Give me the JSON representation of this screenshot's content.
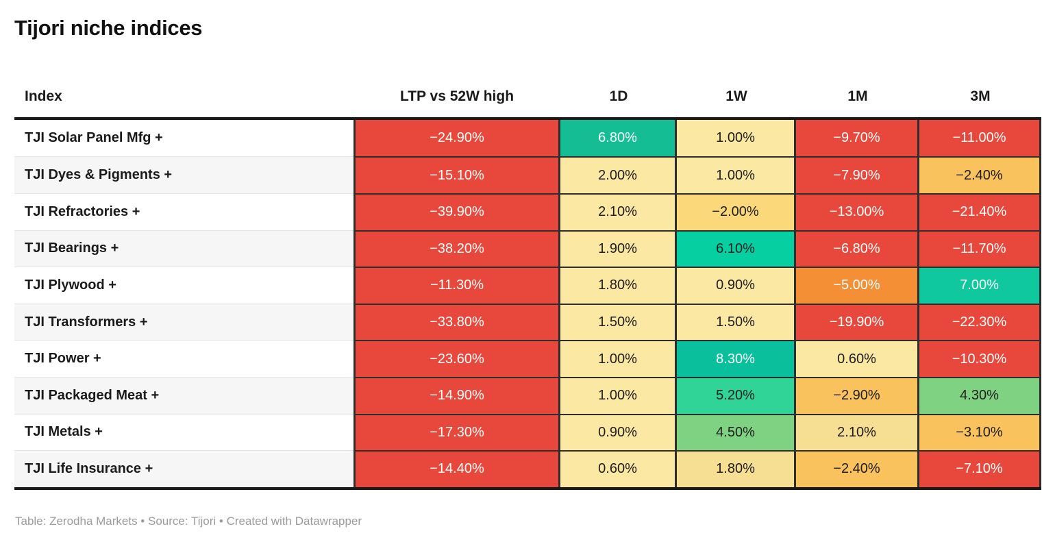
{
  "title": "Tijori niche indices",
  "footer": "Table: Zerodha Markets • Source: Tijori • Created with Datawrapper",
  "columns": [
    "Index",
    "LTP vs 52W high",
    "1D",
    "1W",
    "1M",
    "3M"
  ],
  "palette": {
    "red": "#e8483b",
    "orange": "#f58f35",
    "amber": "#f9c25c",
    "gold": "#fbd87a",
    "goldLight": "#f6de93",
    "paleYellow": "#fbe8a2",
    "green": "#80d283",
    "greenTeal": "#2fd496",
    "teal680": "#14bd94",
    "teal610": "#06cfa2",
    "teal700": "#10c89e",
    "teal830": "#0abf9c",
    "rowAlt": "#f6f6f6",
    "cellBorder": "#2e2e2e",
    "rule": "#1a1a1a",
    "footerText": "#9b9b9b",
    "textLight": "#ffffff",
    "textDark": "#1d1d1d"
  },
  "rows": [
    {
      "label": "TJI Solar Panel Mfg +",
      "cells": [
        {
          "value": "−24.90%",
          "bg": "red",
          "fg": "#ffffff"
        },
        {
          "value": "6.80%",
          "bg": "teal680",
          "fg": "#ffffff"
        },
        {
          "value": "1.00%",
          "bg": "paleYellow",
          "fg": "#1d1d1d"
        },
        {
          "value": "−9.70%",
          "bg": "red",
          "fg": "#ffffff"
        },
        {
          "value": "−11.00%",
          "bg": "red",
          "fg": "#ffffff"
        }
      ]
    },
    {
      "label": "TJI Dyes & Pigments +",
      "cells": [
        {
          "value": "−15.10%",
          "bg": "red",
          "fg": "#ffffff"
        },
        {
          "value": "2.00%",
          "bg": "paleYellow",
          "fg": "#1d1d1d"
        },
        {
          "value": "1.00%",
          "bg": "paleYellow",
          "fg": "#1d1d1d"
        },
        {
          "value": "−7.90%",
          "bg": "red",
          "fg": "#ffffff"
        },
        {
          "value": "−2.40%",
          "bg": "amber",
          "fg": "#1d1d1d"
        }
      ]
    },
    {
      "label": "TJI Refractories +",
      "cells": [
        {
          "value": "−39.90%",
          "bg": "red",
          "fg": "#ffffff"
        },
        {
          "value": "2.10%",
          "bg": "paleYellow",
          "fg": "#1d1d1d"
        },
        {
          "value": "−2.00%",
          "bg": "gold",
          "fg": "#1d1d1d"
        },
        {
          "value": "−13.00%",
          "bg": "red",
          "fg": "#ffffff"
        },
        {
          "value": "−21.40%",
          "bg": "red",
          "fg": "#ffffff"
        }
      ]
    },
    {
      "label": "TJI Bearings +",
      "cells": [
        {
          "value": "−38.20%",
          "bg": "red",
          "fg": "#ffffff"
        },
        {
          "value": "1.90%",
          "bg": "paleYellow",
          "fg": "#1d1d1d"
        },
        {
          "value": "6.10%",
          "bg": "teal610",
          "fg": "#1d1d1d"
        },
        {
          "value": "−6.80%",
          "bg": "red",
          "fg": "#ffffff"
        },
        {
          "value": "−11.70%",
          "bg": "red",
          "fg": "#ffffff"
        }
      ]
    },
    {
      "label": "TJI Plywood +",
      "cells": [
        {
          "value": "−11.30%",
          "bg": "red",
          "fg": "#ffffff"
        },
        {
          "value": "1.80%",
          "bg": "paleYellow",
          "fg": "#1d1d1d"
        },
        {
          "value": "0.90%",
          "bg": "paleYellow",
          "fg": "#1d1d1d"
        },
        {
          "value": "−5.00%",
          "bg": "orange",
          "fg": "#ffffff"
        },
        {
          "value": "7.00%",
          "bg": "teal700",
          "fg": "#ffffff"
        }
      ]
    },
    {
      "label": "TJI Transformers +",
      "cells": [
        {
          "value": "−33.80%",
          "bg": "red",
          "fg": "#ffffff"
        },
        {
          "value": "1.50%",
          "bg": "paleYellow",
          "fg": "#1d1d1d"
        },
        {
          "value": "1.50%",
          "bg": "paleYellow",
          "fg": "#1d1d1d"
        },
        {
          "value": "−19.90%",
          "bg": "red",
          "fg": "#ffffff"
        },
        {
          "value": "−22.30%",
          "bg": "red",
          "fg": "#ffffff"
        }
      ]
    },
    {
      "label": "TJI Power +",
      "cells": [
        {
          "value": "−23.60%",
          "bg": "red",
          "fg": "#ffffff"
        },
        {
          "value": "1.00%",
          "bg": "paleYellow",
          "fg": "#1d1d1d"
        },
        {
          "value": "8.30%",
          "bg": "teal830",
          "fg": "#ffffff"
        },
        {
          "value": "0.60%",
          "bg": "paleYellow",
          "fg": "#1d1d1d"
        },
        {
          "value": "−10.30%",
          "bg": "red",
          "fg": "#ffffff"
        }
      ]
    },
    {
      "label": "TJI Packaged Meat +",
      "cells": [
        {
          "value": "−14.90%",
          "bg": "red",
          "fg": "#ffffff"
        },
        {
          "value": "1.00%",
          "bg": "paleYellow",
          "fg": "#1d1d1d"
        },
        {
          "value": "5.20%",
          "bg": "greenTeal",
          "fg": "#1d1d1d"
        },
        {
          "value": "−2.90%",
          "bg": "amber",
          "fg": "#1d1d1d"
        },
        {
          "value": "4.30%",
          "bg": "green",
          "fg": "#1d1d1d"
        }
      ]
    },
    {
      "label": "TJI Metals +",
      "cells": [
        {
          "value": "−17.30%",
          "bg": "red",
          "fg": "#ffffff"
        },
        {
          "value": "0.90%",
          "bg": "paleYellow",
          "fg": "#1d1d1d"
        },
        {
          "value": "4.50%",
          "bg": "green",
          "fg": "#1d1d1d"
        },
        {
          "value": "2.10%",
          "bg": "goldLight",
          "fg": "#1d1d1d"
        },
        {
          "value": "−3.10%",
          "bg": "amber",
          "fg": "#1d1d1d"
        }
      ]
    },
    {
      "label": "TJI Life Insurance +",
      "cells": [
        {
          "value": "−14.40%",
          "bg": "red",
          "fg": "#ffffff"
        },
        {
          "value": "0.60%",
          "bg": "paleYellow",
          "fg": "#1d1d1d"
        },
        {
          "value": "1.80%",
          "bg": "goldLight",
          "fg": "#1d1d1d"
        },
        {
          "value": "−2.40%",
          "bg": "amber",
          "fg": "#1d1d1d"
        },
        {
          "value": "−7.10%",
          "bg": "red",
          "fg": "#ffffff"
        }
      ]
    }
  ],
  "chart_data": {
    "type": "table",
    "title": "Tijori niche indices",
    "columns": [
      "Index",
      "LTP vs 52W high",
      "1D",
      "1W",
      "1M",
      "3M"
    ],
    "rows": [
      [
        "TJI Solar Panel Mfg +",
        -24.9,
        6.8,
        1.0,
        -9.7,
        -11.0
      ],
      [
        "TJI Dyes & Pigments +",
        -15.1,
        2.0,
        1.0,
        -7.9,
        -2.4
      ],
      [
        "TJI Refractories +",
        -39.9,
        2.1,
        -2.0,
        -13.0,
        -21.4
      ],
      [
        "TJI Bearings +",
        -38.2,
        1.9,
        6.1,
        -6.8,
        -11.7
      ],
      [
        "TJI Plywood +",
        -11.3,
        1.8,
        0.9,
        -5.0,
        7.0
      ],
      [
        "TJI Transformers +",
        -33.8,
        1.5,
        1.5,
        -19.9,
        -22.3
      ],
      [
        "TJI Power +",
        -23.6,
        1.0,
        8.3,
        0.6,
        -10.3
      ],
      [
        "TJI Packaged Meat +",
        -14.9,
        1.0,
        5.2,
        -2.9,
        4.3
      ],
      [
        "TJI Metals +",
        -17.3,
        0.9,
        4.5,
        2.1,
        -3.1
      ],
      [
        "TJI Life Insurance +",
        -14.4,
        0.6,
        1.8,
        -2.4,
        -7.1
      ]
    ],
    "units": "percent",
    "color_scale": "diverging heatmap: deep red for large negatives, orange/amber for small negatives, pale yellow near zero, green to teal for positives",
    "footer": "Table: Zerodha Markets • Source: Tijori • Created with Datawrapper"
  }
}
